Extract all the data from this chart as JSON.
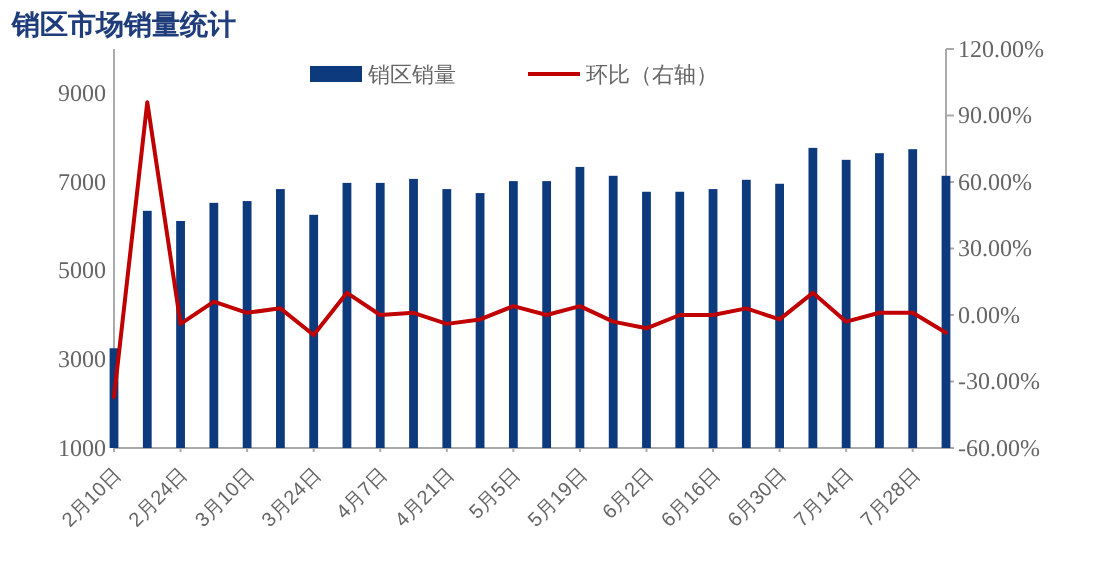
{
  "chart_data": {
    "type": "bar",
    "title": "销区市场销量统计",
    "categories": [
      "2月10日",
      null,
      "2月24日",
      null,
      "3月10日",
      null,
      "3月24日",
      null,
      "4月7日",
      null,
      "4月21日",
      null,
      "5月5日",
      null,
      "5月19日",
      null,
      "6月2日",
      null,
      "6月16日",
      null,
      "6月30日",
      null,
      "7月14日",
      null,
      "7月28日",
      null
    ],
    "series": [
      {
        "name": "销区销量",
        "color": "#0d3a7d",
        "values": [
          3250,
          6350,
          6120,
          6530,
          6570,
          6840,
          6260,
          6980,
          6980,
          7070,
          6840,
          6750,
          7020,
          7020,
          7340,
          7140,
          6780,
          6780,
          6840,
          7050,
          6960,
          7770,
          7500,
          7650,
          7740,
          7140
        ]
      },
      {
        "name": "环比（右轴）",
        "type": "line",
        "axis": "y2",
        "color": "#c00000",
        "values": [
          -37,
          96,
          -4,
          6,
          1,
          3,
          -9,
          10,
          0,
          1,
          -4,
          -2,
          4,
          0,
          4,
          -3,
          -6,
          0,
          0,
          3,
          -2,
          10,
          -3,
          1,
          1,
          -8
        ]
      }
    ],
    "ylim": [
      1000,
      10000
    ],
    "yticks": [
      1000,
      3000,
      5000,
      7000,
      9000
    ],
    "y2lim": [
      -60,
      120
    ],
    "y2ticks": [
      {
        "value": -60,
        "label": "-60.00%"
      },
      {
        "value": -30,
        "label": "-30.00%"
      },
      {
        "value": 0,
        "label": "0.00%"
      },
      {
        "value": 30,
        "label": "30.00%"
      },
      {
        "value": 60,
        "label": "60.00%"
      },
      {
        "value": 90,
        "label": "90.00%"
      },
      {
        "value": 120,
        "label": "120.00%"
      }
    ],
    "legend": "top",
    "grid": false,
    "marker": "none",
    "line_style": "solid"
  }
}
